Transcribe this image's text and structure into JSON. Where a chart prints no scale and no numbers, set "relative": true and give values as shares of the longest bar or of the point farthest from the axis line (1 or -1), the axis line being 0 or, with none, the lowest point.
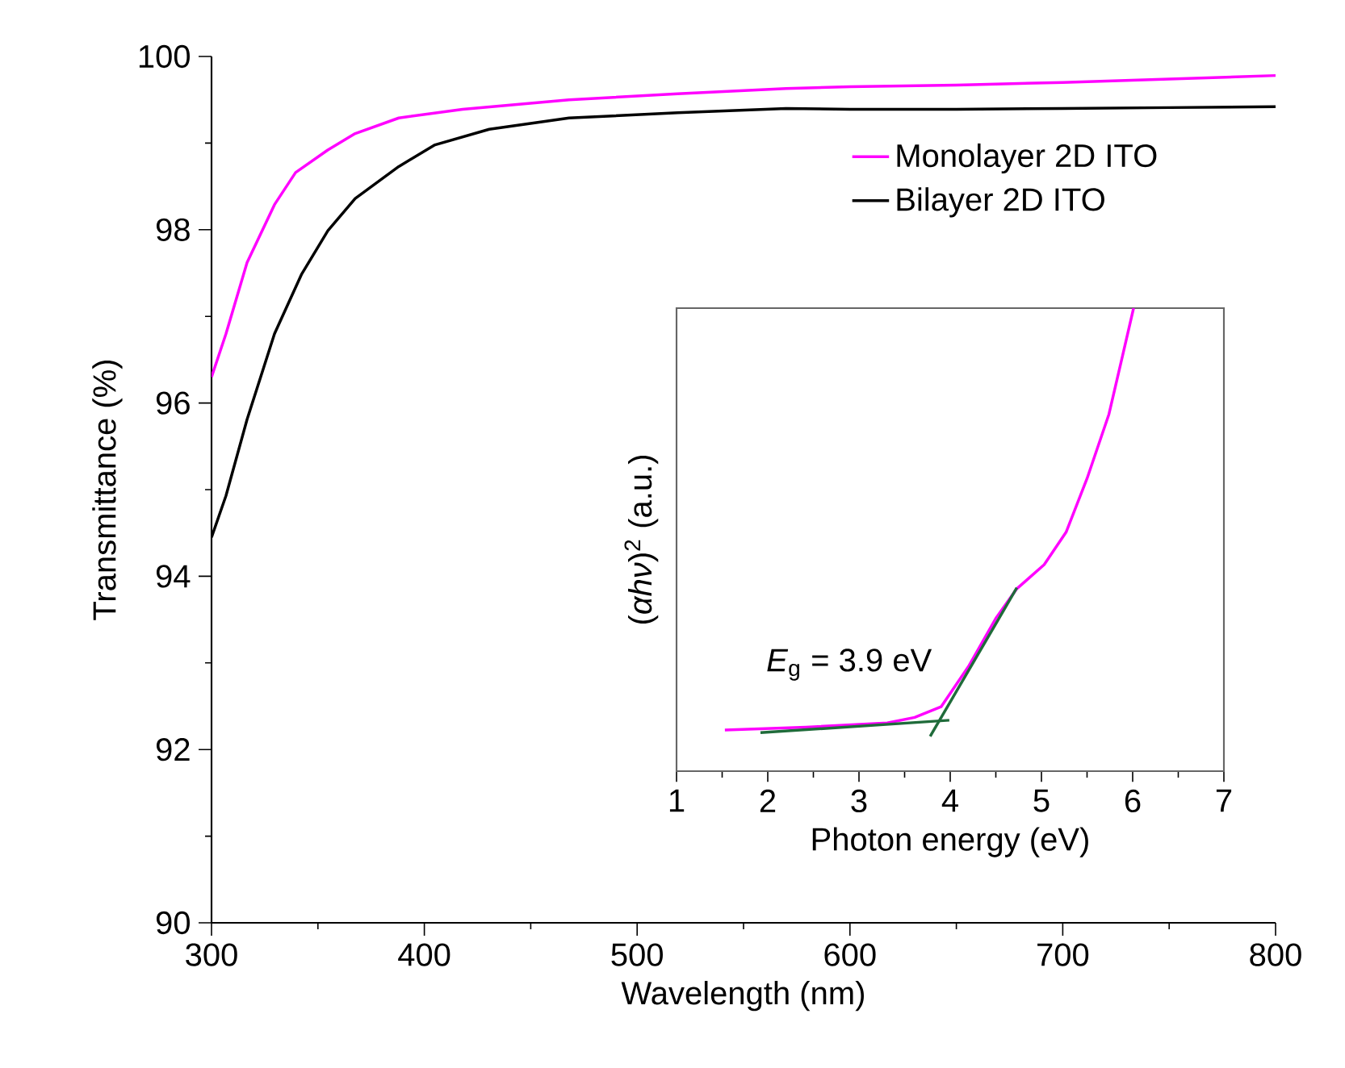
{
  "chart_data": [
    {
      "type": "line",
      "xlabel": "Wavelength (nm)",
      "ylabel": "Transmittance (%)",
      "xlim": [
        300,
        800
      ],
      "ylim": [
        90,
        100
      ],
      "xticks": [
        300,
        400,
        500,
        600,
        700,
        800
      ],
      "yticks": [
        90,
        92,
        94,
        96,
        98,
        100
      ],
      "legend": "top right",
      "series": [
        {
          "name": "Monolayer 2D ITO",
          "color": "#ff00ff",
          "x": [
            300,
            306.8,
            316.7,
            329.6,
            339.5,
            354.6,
            367.5,
            388,
            418,
            468,
            519,
            570,
            600,
            650,
            700,
            750,
            800
          ],
          "values": [
            96.3,
            96.8,
            97.62,
            98.29,
            98.66,
            98.92,
            99.11,
            99.29,
            99.39,
            99.5,
            99.57,
            99.63,
            99.65,
            99.67,
            99.7,
            99.74,
            99.78
          ]
        },
        {
          "name": "Bilayer 2D ITO",
          "color": "#000000",
          "x": [
            300,
            306.8,
            316.7,
            329.6,
            342.4,
            354.7,
            367.5,
            388,
            405,
            430.5,
            468,
            519,
            570,
            600,
            650,
            700,
            750,
            800
          ],
          "values": [
            94.45,
            94.93,
            95.81,
            96.8,
            97.49,
            97.99,
            98.36,
            98.73,
            98.98,
            99.16,
            99.29,
            99.35,
            99.4,
            99.39,
            99.39,
            99.4,
            99.41,
            99.42
          ]
        }
      ]
    },
    {
      "type": "line",
      "xlabel": "Photon energy (eV)",
      "ylabel": "(*αhν*)$^{2}$ (a.u.)",
      "xlim": [
        1,
        7
      ],
      "xticks": [
        1,
        2,
        3,
        4,
        5,
        6,
        7
      ],
      "relative": true,
      "tick_labels": "x",
      "annotations": [
        "*E*$_{g}$ = 3.9 eV"
      ],
      "series": [
        {
          "color": "#ff00ff",
          "x": [
            1.53,
            2.42,
            3.31,
            3.61,
            3.9,
            4.2,
            4.5,
            4.73,
            5.03,
            5.27,
            5.5,
            5.74,
            5.89,
            6.01
          ],
          "values": [
            0.089,
            0.095,
            0.104,
            0.116,
            0.139,
            0.226,
            0.33,
            0.394,
            0.446,
            0.516,
            0.632,
            0.771,
            0.898,
            1.0
          ]
        },
        {
          "color": "#1f6b3a",
          "x": [
            1.92,
            3.99
          ],
          "values": [
            0.083,
            0.11
          ]
        },
        {
          "color": "#1f6b3a",
          "x": [
            3.78,
            4.73
          ],
          "values": [
            0.075,
            0.396
          ]
        }
      ]
    }
  ]
}
